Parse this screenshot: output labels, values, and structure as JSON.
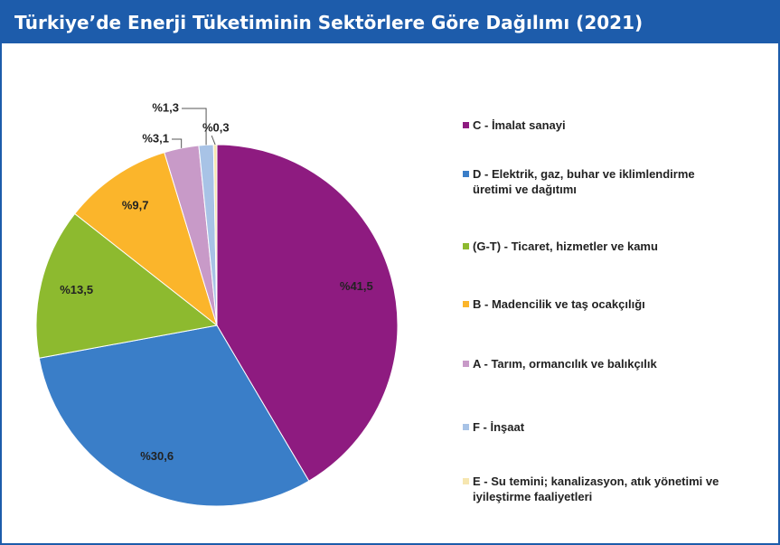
{
  "chart_data": {
    "type": "pie",
    "title": "Türkiye’de Enerji Tüketiminin Sektörlere Göre Dağılımı (2021)",
    "categories": [
      "C - İmalat sanayi",
      "D - Elektrik, gaz, buhar ve iklimlendirme üretimi ve dağıtımı",
      "(G-T) - Ticaret, hizmetler ve kamu",
      "B - Madencilik ve taş ocakçılığı",
      "A - Tarım, ormancılık ve balıkçılık",
      "F - İnşaat",
      "E - Su temini; kanalizasyon, atık yönetimi ve iyileştirme faaliyetleri"
    ],
    "values": [
      41.5,
      30.6,
      13.5,
      9.7,
      3.1,
      1.3,
      0.3
    ],
    "value_labels": [
      "%41,5",
      "%30,6",
      "%13,5",
      "%9,7",
      "%3,1",
      "%1,3",
      "%0,3"
    ],
    "colors": [
      "#8e1b80",
      "#3a7ec8",
      "#8dba2f",
      "#fbb52b",
      "#c89ac8",
      "#a8c3e6",
      "#f6e6b0"
    ]
  }
}
